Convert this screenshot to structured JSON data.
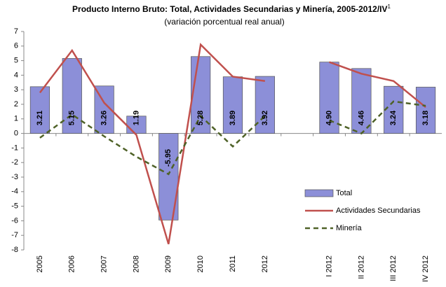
{
  "chart_data": {
    "type": "bar_line",
    "title": "Producto Interno Bruto: Total, Actividades Secundarias y Minería, 2005-2012/IV",
    "title_note": "1",
    "subtitle": "(variación porcentual real anual)",
    "categories": [
      "2005",
      "2006",
      "2007",
      "2008",
      "2009",
      "2010",
      "2011",
      "2012",
      null,
      "I 2012",
      "II 2012",
      "III 2012",
      "IV 2012"
    ],
    "series": [
      {
        "name": "Total",
        "type": "bar",
        "color": "#8c8fd8",
        "values": [
          3.21,
          5.15,
          3.26,
          1.19,
          -5.95,
          5.28,
          3.89,
          3.92,
          null,
          4.9,
          4.46,
          3.24,
          3.18
        ],
        "value_labels": [
          "3.21",
          "5.15",
          "3.26",
          "1.19",
          "-5.95",
          "5.28",
          "3.89",
          "3.92",
          null,
          "4.90",
          "4.46",
          "3.24",
          "3.18"
        ]
      },
      {
        "name": "Actividades Secundarias",
        "type": "line",
        "color": "#c0504d",
        "values": [
          2.8,
          5.7,
          2.1,
          -0.1,
          -7.6,
          6.1,
          3.9,
          3.6,
          null,
          4.9,
          4.1,
          3.6,
          1.8
        ]
      },
      {
        "name": "Minería",
        "type": "line",
        "dashed": true,
        "color": "#4f6228",
        "values": [
          -0.3,
          1.3,
          -0.2,
          -1.6,
          -2.8,
          1.2,
          -0.9,
          1.2,
          null,
          0.9,
          0.0,
          2.2,
          1.9
        ]
      }
    ],
    "ylim": [
      -8,
      7
    ],
    "yticks": [
      -8,
      -7,
      -6,
      -5,
      -4,
      -3,
      -2,
      -1,
      0,
      1,
      2,
      3,
      4,
      5,
      6,
      7
    ],
    "legend_position": "right"
  }
}
